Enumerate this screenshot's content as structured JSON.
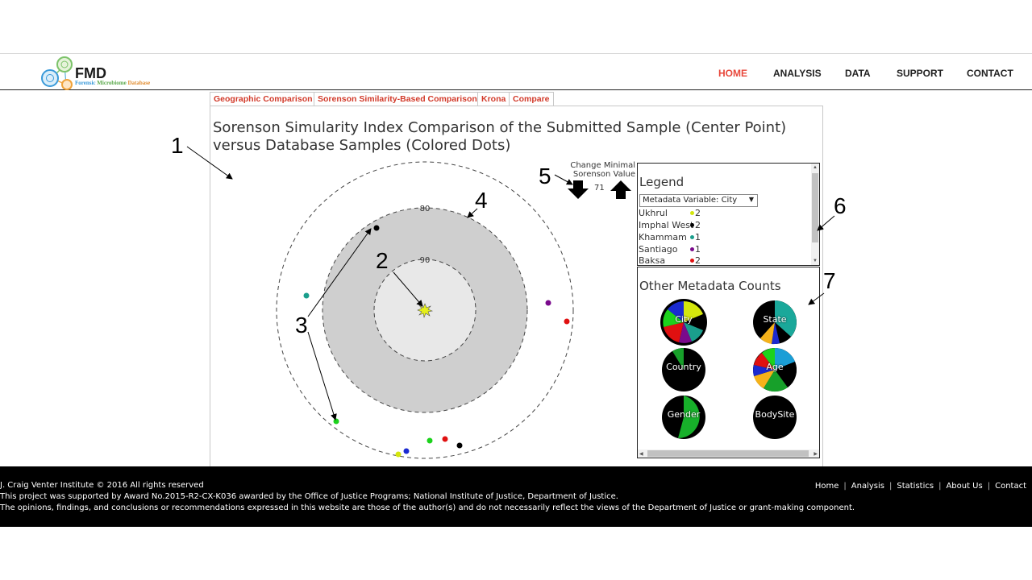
{
  "header": {
    "logo_title": "FMD",
    "logo_sub_a": "Forensic ",
    "logo_sub_b": "Microbiome ",
    "logo_sub_c": "Database",
    "nav": [
      "HOME",
      "ANALYSIS",
      "DATA",
      "SUPPORT",
      "CONTACT"
    ],
    "active_nav": "HOME"
  },
  "tabs": [
    "Geographic Comparison",
    "Sorenson Similarity-Based Comparison",
    "Krona",
    "Compare"
  ],
  "main": {
    "title": "Sorenson Simularity Index Comparison of the Submitted Sample (Center Point) versus Database Samples (Colored Dots)",
    "ring_labels": [
      "80",
      "90"
    ],
    "sorenson_label_1": "Change Minimal",
    "sorenson_label_2": "Sorenson Value",
    "sorenson_value": "71"
  },
  "legend": {
    "title": "Legend",
    "select_value": "Metadata Variable: City",
    "items": [
      {
        "label": "Ukhrul",
        "count": "2",
        "color": "#d4e60c"
      },
      {
        "label": "Imphal West",
        "count": "2",
        "color": "#000000"
      },
      {
        "label": "Khammam",
        "count": "1",
        "color": "#1a9e8c"
      },
      {
        "label": "Santiago",
        "count": "1",
        "color": "#7a0a8c"
      },
      {
        "label": "Baksa",
        "count": "2",
        "color": "#e01010"
      }
    ]
  },
  "metadata": {
    "title": "Other Metadata Counts",
    "pies": [
      {
        "label": "City"
      },
      {
        "label": "State"
      },
      {
        "label": "Country"
      },
      {
        "label": "Age"
      },
      {
        "label": "Gender"
      },
      {
        "label": "BodySite"
      }
    ]
  },
  "annotations": [
    "1",
    "2",
    "3",
    "4",
    "5",
    "6",
    "7"
  ],
  "footer": {
    "line1": "J. Craig Venter Institute © 2016 All rights reserved",
    "line2": "This project was supported by Award No.2015-R2-CX-K036 awarded by the Office of Justice Programs; National Institute of Justice, Department of Justice.",
    "line3": "The opinions, findings, and conclusions or recommendations expressed in this website are those of the author(s) and do not necessarily reflect the views of the Department of Justice or grant-making component.",
    "links": [
      "Home",
      "Analysis",
      "Statistics",
      "About Us",
      "Contact"
    ]
  },
  "colors": {
    "accent": "#e8473b",
    "tab_text": "#d23a2a",
    "ring_outer_fill": "#cfcfcf",
    "ring_inner_fill": "#e8e8e8"
  }
}
